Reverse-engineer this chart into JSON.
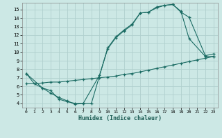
{
  "xlabel": "Humidex (Indice chaleur)",
  "xlim": [
    -0.5,
    23.5
  ],
  "ylim": [
    3.5,
    15.8
  ],
  "yticks": [
    4,
    5,
    6,
    7,
    8,
    9,
    10,
    11,
    12,
    13,
    14,
    15
  ],
  "xticks": [
    0,
    1,
    2,
    3,
    4,
    5,
    6,
    7,
    8,
    9,
    10,
    11,
    12,
    13,
    14,
    15,
    16,
    17,
    18,
    19,
    20,
    21,
    22,
    23
  ],
  "bg_color": "#cce8e5",
  "grid_color": "#b0d0ce",
  "line_color": "#1a6b63",
  "line1_x": [
    0,
    1,
    2,
    3,
    4,
    5,
    6,
    7,
    9,
    10,
    11,
    12,
    13,
    14,
    15,
    16,
    17,
    18,
    19,
    20,
    22,
    23
  ],
  "line1_y": [
    7.5,
    6.3,
    5.8,
    5.2,
    4.7,
    4.3,
    3.9,
    4.0,
    7.3,
    10.4,
    11.7,
    12.5,
    13.2,
    14.6,
    14.7,
    15.2,
    15.5,
    15.6,
    14.8,
    11.6,
    9.5,
    9.5
  ],
  "line2_x": [
    0,
    2,
    3,
    4,
    5,
    6,
    7,
    8,
    10,
    11,
    12,
    13,
    14,
    15,
    16,
    17,
    18,
    19,
    20,
    22,
    23
  ],
  "line2_y": [
    7.5,
    5.8,
    5.5,
    4.5,
    4.2,
    4.0,
    4.0,
    4.0,
    10.5,
    11.8,
    12.6,
    13.3,
    14.6,
    14.7,
    15.3,
    15.5,
    15.6,
    14.7,
    14.1,
    9.6,
    9.8
  ],
  "line3_x": [
    0,
    1,
    2,
    3,
    4,
    5,
    6,
    7,
    8,
    9,
    10,
    11,
    12,
    13,
    14,
    15,
    16,
    17,
    18,
    19,
    20,
    21,
    22,
    23
  ],
  "line3_y": [
    6.3,
    6.3,
    6.4,
    6.5,
    6.5,
    6.6,
    6.7,
    6.8,
    6.9,
    7.0,
    7.1,
    7.2,
    7.4,
    7.5,
    7.7,
    7.9,
    8.1,
    8.3,
    8.5,
    8.7,
    8.9,
    9.1,
    9.3,
    9.5
  ]
}
